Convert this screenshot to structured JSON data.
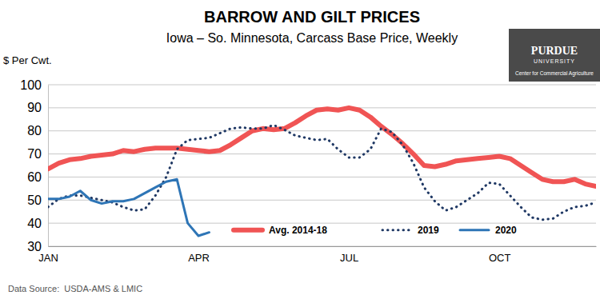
{
  "chart_data": {
    "type": "line",
    "title": "BARROW AND GILT PRICES",
    "subtitle": "Iowa – So. Minnesota, Carcass Base Price, Weekly",
    "y_label": "$ Per Cwt.",
    "source": "Data Source:  USDA-AMS & LMIC",
    "logo": {
      "name": "PURDUE",
      "subname": "UNIVERSITY",
      "tagline": "Center for Commercial Agriculture"
    },
    "categories": [
      "JAN",
      null,
      null,
      null,
      null,
      null,
      null,
      null,
      null,
      null,
      null,
      null,
      null,
      null,
      "APR",
      null,
      null,
      null,
      null,
      null,
      null,
      null,
      null,
      null,
      null,
      null,
      null,
      null,
      "JUL",
      null,
      null,
      null,
      null,
      null,
      null,
      null,
      null,
      null,
      null,
      null,
      null,
      null,
      "OCT",
      null,
      null,
      null,
      null,
      null,
      null,
      null,
      null,
      null
    ],
    "series": [
      {
        "name": "Avg. 2014-18",
        "color": "#f05454",
        "line_style": "solid",
        "values": [
          63.5,
          66,
          67.5,
          68,
          69,
          69.5,
          70,
          71.5,
          71,
          72,
          72.5,
          72.5,
          72.5,
          72,
          71.5,
          71,
          71.5,
          74,
          77,
          80,
          81,
          80.5,
          81,
          83.5,
          86.5,
          89,
          89.5,
          89,
          90,
          89,
          86,
          82,
          78.5,
          74.5,
          70,
          65,
          64.5,
          65.5,
          67,
          67.5,
          68,
          68.5,
          69,
          68,
          65,
          62,
          59,
          58,
          58,
          59,
          57,
          56
        ]
      },
      {
        "name": "2019",
        "color": "#1f3864",
        "line_style": "dotted",
        "values": [
          47,
          50.5,
          52,
          52,
          51,
          50,
          49,
          47,
          45.5,
          46,
          52,
          60,
          72,
          76,
          76.5,
          77,
          79,
          81,
          81.5,
          81,
          81,
          82.5,
          80.5,
          78,
          77,
          76,
          76.5,
          72,
          68.5,
          68.5,
          72,
          81,
          79.5,
          74,
          66,
          55.5,
          49.5,
          45.5,
          47,
          50,
          53,
          57.5,
          57,
          52,
          47,
          42.5,
          41.5,
          42,
          45,
          47,
          47.5,
          49
        ]
      },
      {
        "name": "2020",
        "color": "#2e75b6",
        "line_style": "solid",
        "values": [
          50.5,
          50.5,
          51.5,
          54,
          50,
          48.5,
          49.5,
          49.5,
          50.5,
          53,
          55.5,
          58,
          59,
          40,
          34.5,
          36,
          null,
          null,
          null,
          null,
          null,
          null,
          null,
          null,
          null,
          null,
          null,
          null,
          null,
          null,
          null,
          null,
          null,
          null,
          null,
          null,
          null,
          null,
          null,
          null,
          null,
          null,
          null,
          null,
          null,
          null,
          null,
          null,
          null,
          null,
          null,
          null
        ]
      }
    ],
    "ylim": [
      30,
      100
    ],
    "yticks": [
      30,
      40,
      50,
      60,
      70,
      80,
      90,
      100
    ],
    "grid": true,
    "legend": "bottom"
  }
}
